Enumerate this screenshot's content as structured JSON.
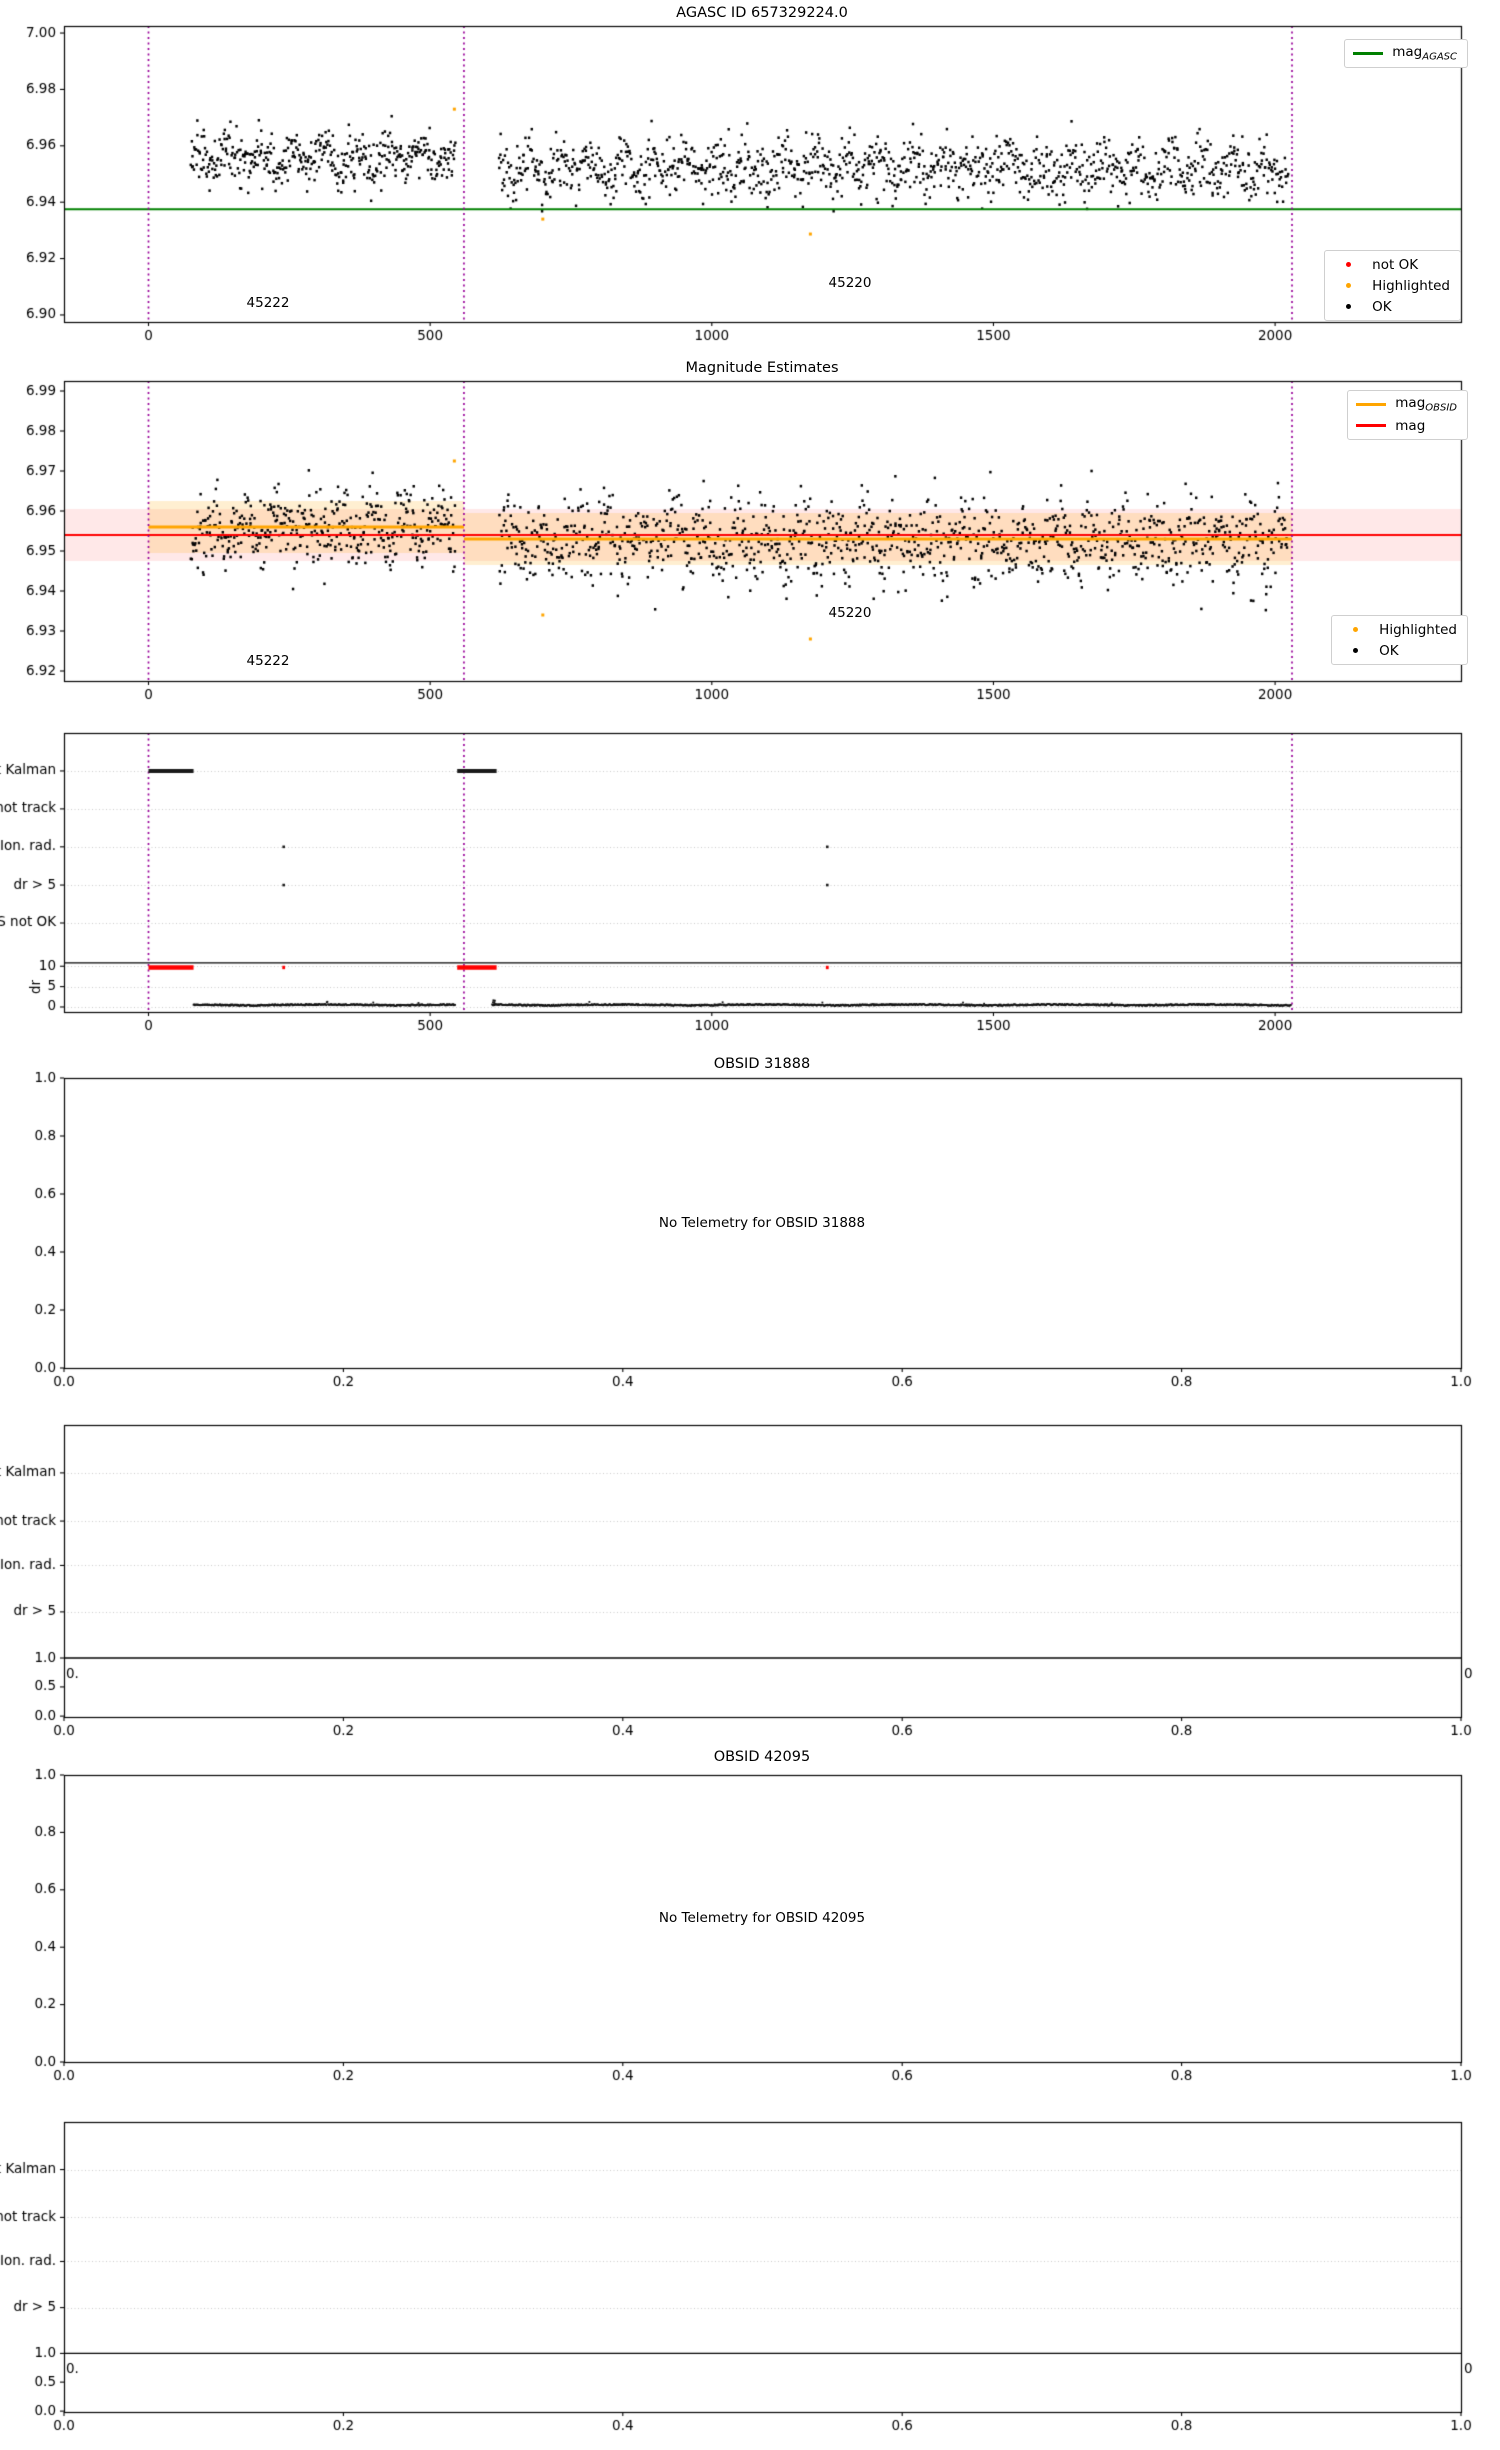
{
  "accent_colors": {
    "agasc_line": "#008000",
    "obsid_line": "#FFA500",
    "mag_line": "#FF0000",
    "vline": "#990099",
    "not_ok": "#FF0000",
    "highlighted": "#FFA500",
    "ok": "#000000"
  },
  "chart_data": [
    {
      "type": "scatter",
      "title": "AGASC ID 657329224.0",
      "xlim": [
        -150,
        2330
      ],
      "ylim": [
        6.8975,
        7.0025
      ],
      "xticks": {
        "values": [
          0,
          500,
          1000,
          1500,
          2000
        ],
        "labels": [
          "0",
          "500",
          "1000",
          "1500",
          "2000"
        ]
      },
      "yticks": {
        "values": [
          7.0,
          6.98,
          6.96,
          6.94,
          6.92,
          6.9
        ],
        "labels": [
          "7.00",
          "6.98",
          "6.96",
          "6.94",
          "6.92",
          "6.90"
        ]
      },
      "hline": {
        "y": 6.9375,
        "color": "#008000",
        "width": 2.2
      },
      "vlines": {
        "xs": [
          0,
          560,
          2030
        ],
        "color": "#990099"
      },
      "clusters": [
        {
          "x0": 75,
          "x1": 545,
          "mean": 6.9555,
          "sd": 0.0052,
          "ymin": 6.9405,
          "ymax": 6.9705,
          "n": 430,
          "seed": 11
        },
        {
          "x0": 622,
          "x1": 2022,
          "mean": 6.9523,
          "sd": 0.006,
          "ymin": 6.9368,
          "ymax": 6.969,
          "n": 1150,
          "seed": 22
        }
      ],
      "outliers": {
        "color": "#FFA500",
        "points": [
          [
            543,
            6.973
          ],
          [
            700,
            6.934
          ],
          [
            1175,
            6.9287
          ]
        ]
      },
      "annotations": [
        {
          "text": "45222",
          "x": 230,
          "y": 6.9113
        },
        {
          "text": "45220",
          "x": 1250,
          "y": 6.9113
        }
      ],
      "legend_line": {
        "main": "mag",
        "sub": "AGASC",
        "color": "#008000"
      },
      "legend_status": [
        {
          "label": "not OK",
          "color": "#FF0000"
        },
        {
          "label": "Highlighted",
          "color": "#FFA500"
        },
        {
          "label": "OK",
          "color": "#000000"
        }
      ]
    },
    {
      "type": "scatter",
      "title": "Magnitude Estimates",
      "xlim": [
        -150,
        2330
      ],
      "ylim": [
        6.9175,
        6.9925
      ],
      "xticks": {
        "values": [
          0,
          500,
          1000,
          1500,
          2000
        ],
        "labels": [
          "0",
          "500",
          "1000",
          "1500",
          "2000"
        ]
      },
      "yticks": {
        "values": [
          6.99,
          6.98,
          6.97,
          6.96,
          6.95,
          6.94,
          6.93,
          6.92
        ],
        "labels": [
          "6.99",
          "6.98",
          "6.97",
          "6.96",
          "6.95",
          "6.94",
          "6.93",
          "6.92"
        ]
      },
      "bands": [
        {
          "x0": -150,
          "x1": 2330,
          "y0": 6.9475,
          "y1": 6.9605,
          "color": "rgba(255,0,0,0.09)"
        },
        {
          "x0": 0,
          "x1": 560,
          "y0": 6.9495,
          "y1": 6.9625,
          "color": "rgba(255,165,0,0.18)"
        },
        {
          "x0": 560,
          "x1": 2030,
          "y0": 6.9465,
          "y1": 6.9595,
          "color": "rgba(255,165,0,0.18)"
        }
      ],
      "hline": {
        "y": 6.954,
        "color": "#FF0000",
        "width": 2.2
      },
      "hsegments": [
        {
          "x0": 0,
          "x1": 560,
          "y": 6.956,
          "color": "#FFA500",
          "width": 3
        },
        {
          "x0": 560,
          "x1": 2030,
          "y": 6.953,
          "color": "#FFA500",
          "width": 3
        }
      ],
      "vlines": {
        "xs": [
          0,
          560,
          2030
        ],
        "color": "#990099"
      },
      "clusters": [
        {
          "x0": 75,
          "x1": 545,
          "mean": 6.956,
          "sd": 0.0055,
          "ymin": 6.9405,
          "ymax": 6.972,
          "n": 430,
          "seed": 33
        },
        {
          "x0": 622,
          "x1": 2022,
          "mean": 6.9525,
          "sd": 0.0063,
          "ymin": 6.934,
          "ymax": 6.97,
          "n": 1150,
          "seed": 44
        }
      ],
      "outliers": {
        "color": "#FFA500",
        "points": [
          [
            543,
            6.9725
          ],
          [
            700,
            6.934
          ],
          [
            1175,
            6.928
          ]
        ]
      },
      "annotations": [
        {
          "text": "45222",
          "x": 230,
          "y": 6.921
        },
        {
          "text": "45220",
          "x": 1250,
          "y": 6.935
        }
      ],
      "legend_lines": [
        {
          "main": "mag",
          "sub": "OBSID",
          "color": "#FFA500"
        },
        {
          "main": "mag",
          "sub": "",
          "color": "#FF0000"
        }
      ],
      "legend_status": [
        {
          "label": "Highlighted",
          "color": "#FFA500"
        },
        {
          "label": "OK",
          "color": "#000000"
        }
      ]
    },
    {
      "type": "flags",
      "categories": [
        "not Kalman",
        "not track",
        "Ion. rad.",
        "dr > 5",
        "OBS not OK"
      ],
      "xlim": [
        -150,
        2330
      ],
      "xticks": {
        "values": [
          0,
          500,
          1000,
          1500,
          2000
        ],
        "labels": [
          "0",
          "500",
          "1000",
          "1500",
          "2000"
        ]
      },
      "vlines": {
        "xs": [
          0,
          560,
          2030
        ],
        "color": "#990099"
      },
      "dr_axis": {
        "label": "dr",
        "ticks": {
          "values": [
            10,
            5,
            0
          ],
          "labels": [
            "10",
            "5",
            "0"
          ]
        }
      },
      "flag_segments": [
        {
          "cat": 0,
          "x0": 0,
          "x1": 80
        },
        {
          "cat": 0,
          "x0": 548,
          "x1": 618
        }
      ],
      "flag_dots": [
        {
          "cat": 2,
          "x": 240
        },
        {
          "cat": 3,
          "x": 240
        },
        {
          "cat": 2,
          "x": 1205
        },
        {
          "cat": 3,
          "x": 1205
        }
      ],
      "dr_segments": {
        "color": "#FF0000",
        "dr": 9.7,
        "spans": [
          [
            0,
            80
          ],
          [
            548,
            618
          ]
        ]
      },
      "dr_dots": {
        "color": "#FF0000",
        "points": [
          [
            240,
            9.7
          ],
          [
            1205,
            9.7
          ]
        ]
      },
      "dr_trace": {
        "spans": [
          [
            80,
            545
          ],
          [
            610,
            2028
          ]
        ],
        "level": 0.4,
        "seed": 55,
        "spike": {
          "x": 613,
          "dr": 1.7
        }
      }
    },
    {
      "type": "empty",
      "title": "OBSID 31888",
      "message": "No Telemetry for OBSID 31888",
      "xlim": [
        0,
        1
      ],
      "ylim": [
        0,
        1
      ],
      "xticks": {
        "values": [
          0,
          0.2,
          0.4,
          0.6,
          0.8,
          1
        ],
        "labels": [
          "0.0",
          "0.2",
          "0.4",
          "0.6",
          "0.8",
          "1.0"
        ]
      },
      "yticks": {
        "values": [
          1,
          0.8,
          0.6,
          0.4,
          0.2,
          0
        ],
        "labels": [
          "1.0",
          "0.8",
          "0.6",
          "0.4",
          "0.2",
          "0.0"
        ]
      }
    },
    {
      "type": "flags-empty",
      "categories": [
        "not Kalman",
        "not track",
        "Ion. rad.",
        "dr > 5"
      ],
      "xlim": [
        0,
        1
      ],
      "xticks": {
        "values": [
          0,
          0.2,
          0.4,
          0.6,
          0.8,
          1
        ],
        "labels": [
          "0.0",
          "0.2",
          "0.4",
          "0.6",
          "0.8",
          "1.0"
        ]
      },
      "mini_ticks": {
        "values": [
          1.0,
          0.5,
          0.0
        ],
        "labels": [
          "1.0",
          "0.5",
          "0.0"
        ]
      },
      "stray_left": "0.",
      "stray_right": "0"
    },
    {
      "type": "empty",
      "title": "OBSID 42095",
      "message": "No Telemetry for OBSID 42095",
      "xlim": [
        0,
        1
      ],
      "ylim": [
        0,
        1
      ],
      "xticks": {
        "values": [
          0,
          0.2,
          0.4,
          0.6,
          0.8,
          1
        ],
        "labels": [
          "0.0",
          "0.2",
          "0.4",
          "0.6",
          "0.8",
          "1.0"
        ]
      },
      "yticks": {
        "values": [
          1,
          0.8,
          0.6,
          0.4,
          0.2,
          0
        ],
        "labels": [
          "1.0",
          "0.8",
          "0.6",
          "0.4",
          "0.2",
          "0.0"
        ]
      }
    },
    {
      "type": "flags-empty",
      "categories": [
        "not Kalman",
        "not track",
        "Ion. rad.",
        "dr > 5"
      ],
      "xlim": [
        0,
        1
      ],
      "xticks": {
        "values": [
          0,
          0.2,
          0.4,
          0.6,
          0.8,
          1
        ],
        "labels": [
          "0.0",
          "0.2",
          "0.4",
          "0.6",
          "0.8",
          "1.0"
        ]
      },
      "mini_ticks": {
        "values": [
          1.0,
          0.5,
          0.0
        ],
        "labels": [
          "1.0",
          "0.5",
          "0.0"
        ]
      },
      "stray_left": "0.",
      "stray_right": "0"
    }
  ]
}
